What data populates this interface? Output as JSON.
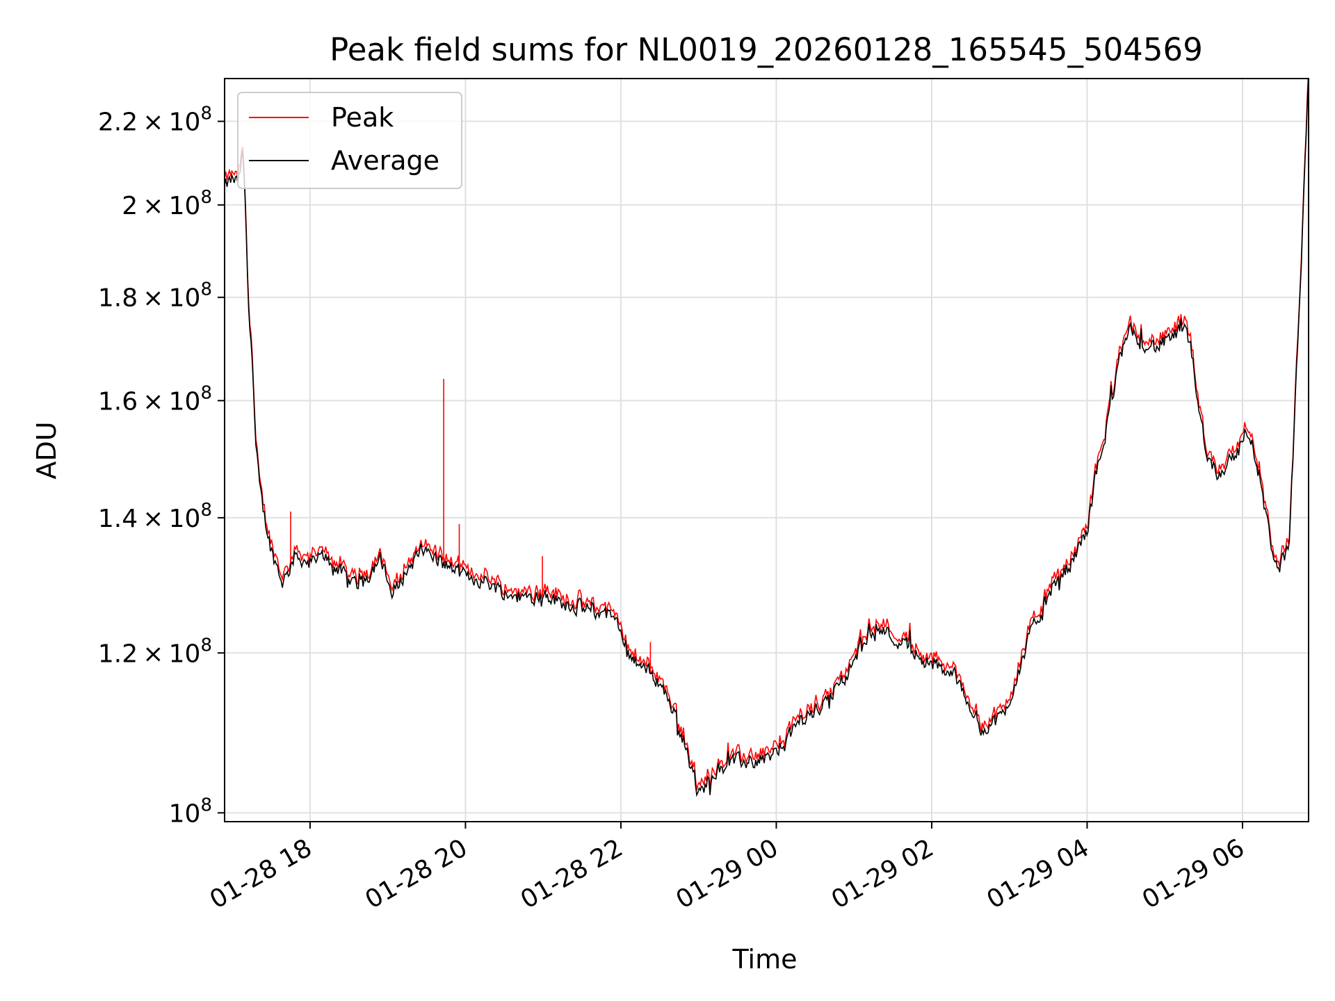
{
  "chart_data": {
    "type": "line",
    "title": "Peak field sums for NL0019_20260128_165545_504569",
    "xlabel": "Time",
    "ylabel": "ADU",
    "yscale": "log",
    "xlim_hours": [
      16.9,
      30.85
    ],
    "ylim": [
      99000000,
      231000000
    ],
    "grid": true,
    "legend": {
      "loc": "upper left",
      "entries": [
        "Peak",
        "Average"
      ]
    },
    "x_ticks": [
      {
        "hour": 18,
        "label": "01-28 18"
      },
      {
        "hour": 20,
        "label": "01-28 20"
      },
      {
        "hour": 22,
        "label": "01-28 22"
      },
      {
        "hour": 24,
        "label": "01-29 00"
      },
      {
        "hour": 26,
        "label": "01-29 02"
      },
      {
        "hour": 28,
        "label": "01-29 04"
      },
      {
        "hour": 30,
        "label": "01-29 06"
      }
    ],
    "y_ticks": [
      {
        "value": 100000000,
        "mantissa": "",
        "exp": "8",
        "base": "10"
      },
      {
        "value": 120000000,
        "mantissa": "1.2",
        "exp": "8",
        "base": "10"
      },
      {
        "value": 140000000,
        "mantissa": "1.4",
        "exp": "8",
        "base": "10"
      },
      {
        "value": 160000000,
        "mantissa": "1.6",
        "exp": "8",
        "base": "10"
      },
      {
        "value": 180000000,
        "mantissa": "1.8",
        "exp": "8",
        "base": "10"
      },
      {
        "value": 200000000,
        "mantissa": "2",
        "exp": "8",
        "base": "10"
      },
      {
        "value": 220000000,
        "mantissa": "2.2",
        "exp": "8",
        "base": "10"
      }
    ],
    "series": [
      {
        "name": "Peak",
        "color": "#ff0000",
        "spikes": [
          {
            "hour": 17.75,
            "value": 141000000
          },
          {
            "hour": 19.72,
            "value": 164000000
          },
          {
            "hour": 19.92,
            "value": 139000000
          },
          {
            "hour": 20.99,
            "value": 134000000
          },
          {
            "hour": 22.38,
            "value": 121500000
          }
        ]
      },
      {
        "name": "Average",
        "color": "#000000"
      }
    ],
    "trend": {
      "hours": [
        16.9,
        17.0,
        17.08,
        17.13,
        17.17,
        17.2,
        17.25,
        17.3,
        17.35,
        17.4,
        17.5,
        17.65,
        17.8,
        18.0,
        18.2,
        18.45,
        18.6,
        18.75,
        18.9,
        19.05,
        19.25,
        19.45,
        19.7,
        20.0,
        20.3,
        20.6,
        21.0,
        21.3,
        21.6,
        21.9,
        22.1,
        22.3,
        22.5,
        22.7,
        22.85,
        23.0,
        23.2,
        23.45,
        23.7,
        24.0,
        24.3,
        24.6,
        24.9,
        25.1,
        25.3,
        25.5,
        25.7,
        25.9,
        26.1,
        26.3,
        26.5,
        26.65,
        26.8,
        26.95,
        27.1,
        27.25,
        27.45,
        27.6,
        27.8,
        28.0,
        28.1,
        28.25,
        28.4,
        28.55,
        28.7,
        28.9,
        29.1,
        29.25,
        29.35,
        29.45,
        29.55,
        29.7,
        29.85,
        29.95,
        30.05,
        30.15,
        30.25,
        30.35,
        30.45,
        30.6,
        30.75,
        30.85
      ],
      "values": [
        204000000,
        206000000,
        205000000,
        212000000,
        200000000,
        180000000,
        170000000,
        152000000,
        145000000,
        141000000,
        135000000,
        130000000,
        134000000,
        133000000,
        134000000,
        131000000,
        130000000,
        131000000,
        134000000,
        128000000,
        132000000,
        135000000,
        133000000,
        131000000,
        130000000,
        128000000,
        128000000,
        127000000,
        126000000,
        125000000,
        120000000,
        118000000,
        116000000,
        112000000,
        107000000,
        102000000,
        105000000,
        106000000,
        106000000,
        107000000,
        111000000,
        113000000,
        117000000,
        121000000,
        124000000,
        122000000,
        121000000,
        119000000,
        118000000,
        117000000,
        113000000,
        110000000,
        111000000,
        112000000,
        117000000,
        122000000,
        127000000,
        130000000,
        133000000,
        138000000,
        146000000,
        155000000,
        167000000,
        173000000,
        171000000,
        170000000,
        172000000,
        174000000,
        168000000,
        158000000,
        150000000,
        147000000,
        150000000,
        151000000,
        155000000,
        151000000,
        144000000,
        137000000,
        132000000,
        135000000,
        185000000,
        231000000
      ]
    },
    "noise_amplitude": 0.012,
    "sample_count": 900
  }
}
